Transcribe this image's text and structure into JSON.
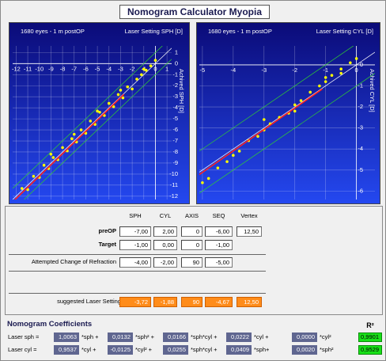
{
  "header": {
    "title": "Nomogram Calculator Myopia"
  },
  "chart_data": [
    {
      "type": "scatter",
      "subtitle": "1680 eyes - 1 m postOP",
      "title": "Laser Setting SPH [D]",
      "y_label": "Achived SPH [D]",
      "xlim": [
        -12.3,
        1.4
      ],
      "ylim": [
        -12.3,
        1.6
      ],
      "xticks": [
        -12,
        -11,
        -10,
        -9,
        -8,
        -7,
        -6,
        -5,
        -4,
        -3,
        -2,
        -1,
        0,
        1
      ],
      "yticks": [
        1,
        0,
        -1,
        -2,
        -3,
        -4,
        -5,
        -6,
        -7,
        -8,
        -9,
        -10,
        -11,
        -12
      ],
      "grid": true,
      "color": "#ffff00",
      "x": [
        -11.5,
        -11,
        -10.5,
        -10,
        -9.6,
        -9.2,
        -8.8,
        -8.4,
        -8,
        -7.6,
        -7.2,
        -6.8,
        -6.4,
        -6,
        -5.6,
        -5.2,
        -4.8,
        -4.4,
        -4,
        -3.6,
        -3.2,
        -2.8,
        -2.4,
        -2,
        -1.6,
        -1.2,
        -0.8,
        -0.4,
        0,
        -9,
        -7,
        -5,
        -3,
        -1
      ],
      "y": [
        -11.3,
        -11.4,
        -10.2,
        -10.3,
        -9.2,
        -9.5,
        -8.5,
        -8.7,
        -7.6,
        -7.9,
        -6.8,
        -7.1,
        -6,
        -6.3,
        -5.2,
        -5.5,
        -4.4,
        -4.7,
        -3.6,
        -3.9,
        -2.8,
        -3.1,
        -2.1,
        -2.3,
        -1.4,
        -1.0,
        -0.6,
        -0.2,
        0.3,
        -8.2,
        -6.4,
        -4.3,
        -2.4,
        -0.5
      ]
    },
    {
      "type": "scatter",
      "subtitle": "1680 eyes - 1 m postOP",
      "title": "Laser Setting CYL [D]",
      "y_label": "Achived CYL [D]",
      "xlim": [
        -5.1,
        0.6
      ],
      "ylim": [
        -6.4,
        0.9
      ],
      "xticks": [
        -5,
        -4,
        -3,
        -2,
        -1,
        0
      ],
      "yticks": [
        0,
        -1,
        -2,
        -3,
        -4,
        -5,
        -6
      ],
      "grid": true,
      "color": "#ffff00",
      "x": [
        -5,
        -4.8,
        -4.5,
        -4.2,
        -4,
        -3.8,
        -3.5,
        -3.2,
        -3,
        -2.8,
        -2.5,
        -2.2,
        -2,
        -1.8,
        -1.5,
        -1.2,
        -1,
        -0.8,
        -0.5,
        -0.2,
        0,
        -3,
        -2,
        -1,
        -0.5
      ],
      "y": [
        -5.6,
        -5.4,
        -4.9,
        -4.6,
        -4.3,
        -4.1,
        -3.6,
        -3.4,
        -3.1,
        -2.8,
        -2.5,
        -2.3,
        -1.9,
        -1.7,
        -1.3,
        -1.0,
        -0.8,
        -0.5,
        -0.2,
        0.1,
        0.3,
        -2.6,
        -2.2,
        -0.6,
        -0.4
      ]
    }
  ],
  "form": {
    "headers": [
      "SPH",
      "CYL",
      "AXIS",
      "SEQ",
      "Vertex"
    ],
    "rows": [
      {
        "label": "preOP",
        "cells": [
          "-7,00",
          "2,00",
          "0",
          "-6,00",
          "12,50"
        ]
      },
      {
        "label": "Target",
        "cells": [
          "-1,00",
          "0,00",
          "0",
          "-1,00"
        ]
      },
      {
        "label": "Attempted Change of Refraction",
        "cells": [
          "-4,00",
          "-2,00",
          "90",
          "-5,00"
        ]
      },
      {
        "label": "suggested Laser Setting",
        "cells": [
          "-3,72",
          "-1,88",
          "90",
          "-4,67",
          "12,50"
        ]
      }
    ]
  },
  "coefficients": {
    "title": "Nomogram Coefficients",
    "r2_label": "R²",
    "rows": [
      {
        "label": "Laser sph =",
        "terms": [
          {
            "value": "1,0063",
            "suffix": "*sph +"
          },
          {
            "value": "0,0132",
            "suffix": "*sph² +"
          },
          {
            "value": "0,0166",
            "suffix": "*sph*cyl +"
          },
          {
            "value": "0,0222",
            "suffix": "*cyl +"
          },
          {
            "value": "0,0000",
            "suffix": "*cyl²"
          }
        ],
        "r2": "0,9901"
      },
      {
        "label": "Laser cyl =",
        "terms": [
          {
            "value": "0,9537",
            "suffix": "*cyl +"
          },
          {
            "value": "-0,0125",
            "suffix": "*cyl² +"
          },
          {
            "value": "0,0255",
            "suffix": "*sph*cyl +"
          },
          {
            "value": "0,0409",
            "suffix": "*sph+"
          },
          {
            "value": "0,0020",
            "suffix": "*sph²"
          }
        ],
        "r2": "0,9529"
      }
    ]
  }
}
